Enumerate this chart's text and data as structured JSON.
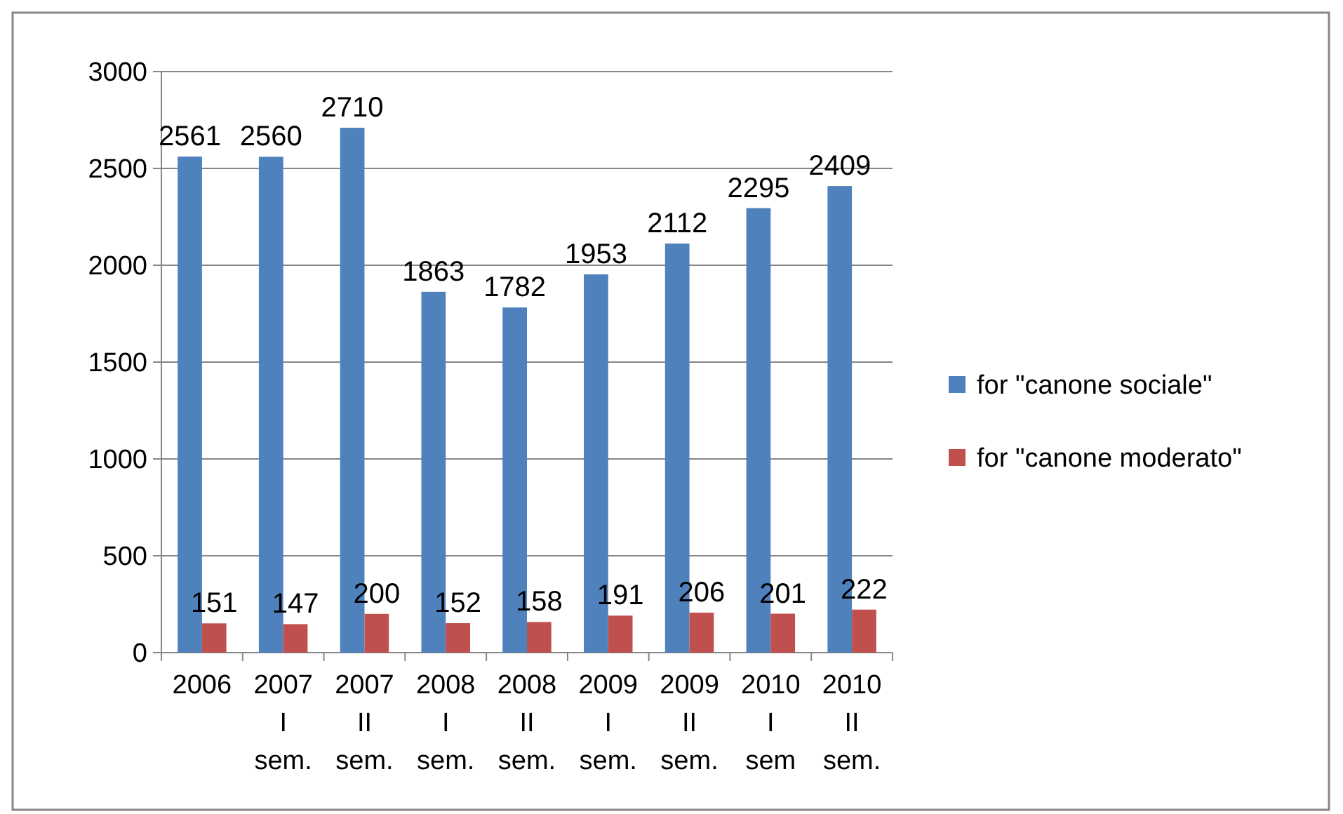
{
  "chart_data": {
    "type": "bar",
    "categories": [
      "2006",
      "2007 I sem.",
      "2007 II sem.",
      "2008 I sem.",
      "2008 II sem.",
      "2009 I sem.",
      "2009 II sem.",
      "2010 I sem",
      "2010 II sem."
    ],
    "series": [
      {
        "name": "for \"canone sociale\"",
        "color": "#4f81bd",
        "values": [
          2561,
          2560,
          2710,
          1863,
          1782,
          1953,
          2112,
          2295,
          2409
        ]
      },
      {
        "name": "for \"canone moderato\"",
        "color": "#c0504d",
        "values": [
          151,
          147,
          200,
          152,
          158,
          191,
          206,
          201,
          222
        ]
      }
    ],
    "ylim": [
      0,
      3000
    ],
    "yticks": [
      0,
      500,
      1000,
      1500,
      2000,
      2500,
      3000
    ],
    "grid": "y",
    "legend": "right",
    "data_labels": true
  }
}
